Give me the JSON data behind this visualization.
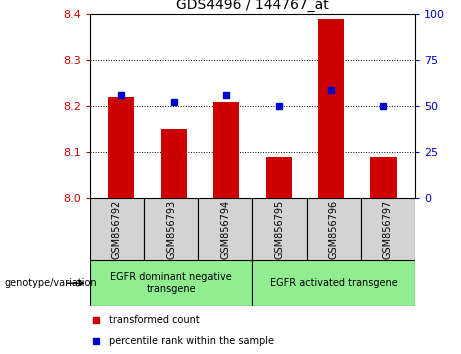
{
  "title": "GDS4496 / 144767_at",
  "samples": [
    "GSM856792",
    "GSM856793",
    "GSM856794",
    "GSM856795",
    "GSM856796",
    "GSM856797"
  ],
  "red_values": [
    8.22,
    8.15,
    8.21,
    8.09,
    8.39,
    8.09
  ],
  "blue_values": [
    8.225,
    8.21,
    8.225,
    8.2,
    8.235,
    8.2
  ],
  "ylim_left": [
    8.0,
    8.4
  ],
  "ylim_right": [
    0,
    100
  ],
  "yticks_left": [
    8.0,
    8.1,
    8.2,
    8.3,
    8.4
  ],
  "yticks_right": [
    0,
    25,
    50,
    75,
    100
  ],
  "bar_color": "#cc0000",
  "dot_color": "#0000cc",
  "bar_width": 0.5,
  "group1_label": "EGFR dominant negative\ntransgene",
  "group2_label": "EGFR activated transgene",
  "genotype_label": "genotype/variation",
  "legend_red": "transformed count",
  "legend_blue": "percentile rank within the sample",
  "left_color": "#cc0000",
  "right_color": "#0000cc",
  "bg_color_cells": "#d3d3d3",
  "bg_color_group": "#90EE90",
  "fig_width": 4.61,
  "fig_height": 3.54,
  "dpi": 100
}
